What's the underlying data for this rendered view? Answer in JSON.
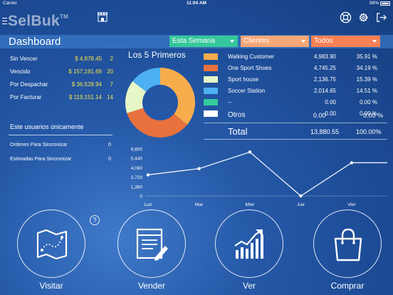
{
  "status_bar": {
    "carrier": "Carrier",
    "time": "11:04 AM",
    "battery": "98%"
  },
  "app": {
    "logo": "SelBuk",
    "trademark": "TM"
  },
  "header": {
    "title": "Dashboard",
    "filters": {
      "period": "Esta Semana",
      "entity": "Clientes",
      "scope": "Todos"
    }
  },
  "summary": [
    {
      "label": "Sin Vencer",
      "amount": "$ 4,878.45",
      "count": "2"
    },
    {
      "label": "Vencido",
      "amount": "$ 157,191.69",
      "count": "20"
    },
    {
      "label": "Por Despachar",
      "amount": "$ 36,528.94",
      "count": "7"
    },
    {
      "label": "Por Facturar",
      "amount": "$ 119,151.14",
      "count": "14"
    }
  ],
  "unsynced": {
    "title": "Este usuarios únicamente",
    "rows": [
      {
        "label": "Ordenes Para Sincronizar",
        "count": "0"
      },
      {
        "label": "Estimadas Para Sincronizar",
        "count": "0"
      }
    ]
  },
  "top5": {
    "title": "Los 5 Primeros",
    "rows": [
      {
        "name": "Walking Customer",
        "value": "4,983.90",
        "pct": "35.91 %",
        "pct_num": 35.91,
        "color": "#f8ad4d"
      },
      {
        "name": "One Sport Shoes",
        "value": "4,745.25",
        "pct": "34.19 %",
        "pct_num": 34.19,
        "color": "#e8713e"
      },
      {
        "name": "Sport house",
        "value": "2,136.75",
        "pct": "15.39 %",
        "pct_num": 15.39,
        "color": "#e7f6c6"
      },
      {
        "name": "Soccer Station",
        "value": "2,014.65",
        "pct": "14.51 %",
        "pct_num": 14.51,
        "color": "#4db0f0"
      },
      {
        "name": "--",
        "value": "0.00",
        "pct": "0.00 %",
        "pct_num": 0,
        "color": "#35c99c"
      },
      {
        "name": "",
        "value": "0.00",
        "pct": "0.00 %",
        "pct_num": 0,
        "color": "#ffffff"
      }
    ],
    "otros": {
      "name": "Otros",
      "value": "0.00",
      "pct": "0.00 %"
    },
    "total": {
      "name": "Total",
      "value": "13,880.55",
      "pct": "100.00%"
    }
  },
  "chart_data": {
    "type": "line",
    "categories": [
      "Lun",
      "Mar",
      "Mier",
      "Jue",
      "Vier"
    ],
    "x": [
      0,
      1,
      2,
      3,
      4,
      5,
      6
    ],
    "values": [
      3050,
      3950,
      6350,
      0,
      4800
    ],
    "y_ticks": [
      "6,800",
      "5,440",
      "4,080",
      "2,720",
      "1,360",
      "0"
    ],
    "ylim": [
      0,
      6800
    ],
    "series": [
      {
        "points": [
          [
            0,
            3050
          ],
          [
            1,
            3950
          ],
          [
            2,
            6350
          ],
          [
            3,
            0
          ],
          [
            4,
            4800
          ],
          [
            4.7,
            4800
          ]
        ]
      }
    ],
    "color": "#ffffff",
    "grid": false
  },
  "actions": [
    {
      "label": "Visitar",
      "icon": "map-icon"
    },
    {
      "label": "Vender",
      "icon": "invoice-pen-icon"
    },
    {
      "label": "Ver",
      "icon": "growth-chart-icon"
    },
    {
      "label": "Comprar",
      "icon": "shopping-bag-icon"
    }
  ],
  "help": "?"
}
